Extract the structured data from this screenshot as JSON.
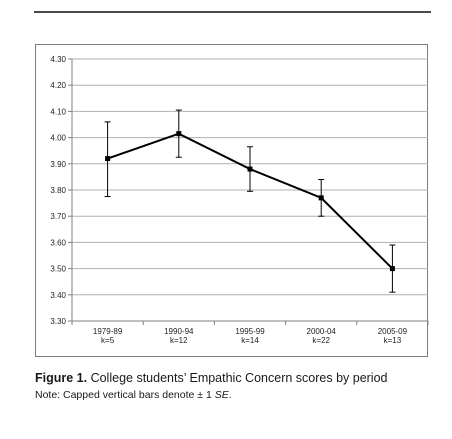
{
  "figure": {
    "caption_label": "Figure 1.",
    "caption_text": "College students’ Empathic Concern scores by period",
    "note_prefix": "Note: Capped vertical bars denote ± 1 ",
    "note_italic": "SE",
    "note_suffix": "."
  },
  "chart_data": {
    "type": "line",
    "title": "",
    "xlabel": "",
    "ylabel": "",
    "ylim": [
      3.3,
      4.3
    ],
    "yticks": [
      "4.30",
      "4.20",
      "4.10",
      "4.00",
      "3.90",
      "3.80",
      "3.70",
      "3.60",
      "3.50",
      "3.40",
      "3.30"
    ],
    "grid": true,
    "legend": "none",
    "categories": [
      {
        "period": "1979-89",
        "k": "k=5"
      },
      {
        "period": "1990-94",
        "k": "k=12"
      },
      {
        "period": "1995-99",
        "k": "k=14"
      },
      {
        "period": "2000-04",
        "k": "k=22"
      },
      {
        "period": "2005-09",
        "k": "k=13"
      }
    ],
    "series": [
      {
        "values": [
          3.92,
          4.015,
          3.88,
          3.77,
          3.5
        ],
        "error_upper": [
          4.06,
          4.105,
          3.965,
          3.84,
          3.59
        ],
        "error_lower": [
          3.775,
          3.925,
          3.795,
          3.7,
          3.41
        ],
        "color": "#000000"
      }
    ],
    "colors": {
      "grid": "#b0b0b0",
      "axis": "#808080",
      "line": "#000000"
    }
  }
}
